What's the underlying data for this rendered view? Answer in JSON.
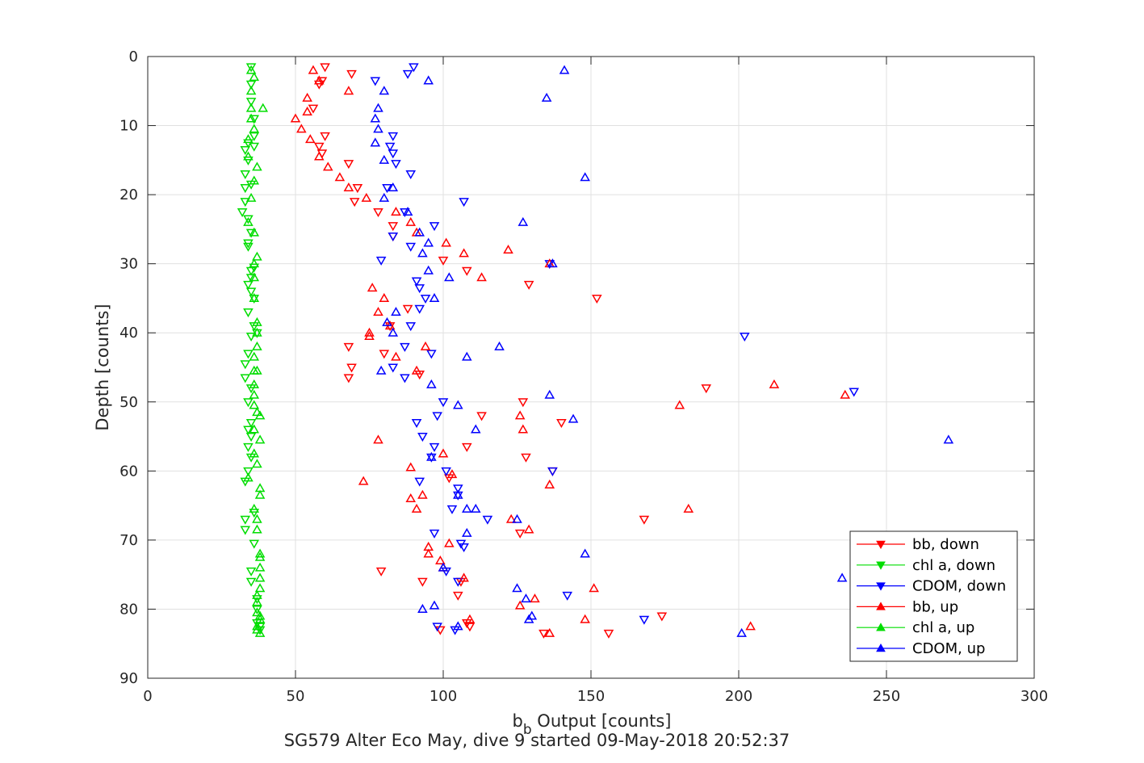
{
  "chart_data": {
    "type": "scatter",
    "title": "",
    "subtitle": "SG579 Alter Eco May, dive 9 started 09-May-2018 20:52:37",
    "xlabel_main": "b",
    "xlabel_sub": "b",
    "xlabel_rest": " Output [counts]",
    "ylabel": "Depth [counts]",
    "xlim": [
      0,
      300
    ],
    "ylim": [
      0,
      90
    ],
    "y_reversed": true,
    "xticks": [
      0,
      50,
      100,
      150,
      200,
      250,
      300
    ],
    "yticks": [
      0,
      10,
      20,
      30,
      40,
      50,
      60,
      70,
      80,
      90
    ],
    "grid": true,
    "legend_position": "bottom-right",
    "series": [
      {
        "name": "bb, down",
        "color": "#ff0000",
        "marker": "triangle-down",
        "points": [
          [
            60,
            1.5
          ],
          [
            69,
            2.5
          ],
          [
            59,
            3.5
          ],
          [
            58,
            4
          ],
          [
            56,
            7.5
          ],
          [
            60,
            11.5
          ],
          [
            58,
            13
          ],
          [
            59,
            14
          ],
          [
            68,
            15.5
          ],
          [
            71,
            19
          ],
          [
            70,
            21
          ],
          [
            78,
            22.5
          ],
          [
            83,
            24.5
          ],
          [
            83,
            26
          ],
          [
            100,
            29.5
          ],
          [
            108,
            31
          ],
          [
            88,
            36.5
          ],
          [
            82,
            39
          ],
          [
            68,
            42
          ],
          [
            69,
            45
          ],
          [
            68,
            46.5
          ],
          [
            80,
            43
          ],
          [
            92,
            46
          ],
          [
            127,
            50
          ],
          [
            113,
            52
          ],
          [
            140,
            53
          ],
          [
            108,
            56.5
          ],
          [
            128,
            58
          ],
          [
            137,
            60
          ],
          [
            102,
            61
          ],
          [
            129,
            33
          ],
          [
            152,
            35
          ],
          [
            189,
            48
          ],
          [
            168,
            67
          ],
          [
            126,
            69
          ],
          [
            105,
            78
          ],
          [
            99,
            83
          ],
          [
            108,
            82
          ],
          [
            109,
            82.5
          ],
          [
            156,
            83.5
          ],
          [
            134,
            83.5
          ],
          [
            174,
            81
          ],
          [
            79,
            74.5
          ],
          [
            93,
            76
          ],
          [
            106,
            76
          ]
        ]
      },
      {
        "name": "chl a, down",
        "color": "#00dd00",
        "marker": "triangle-down",
        "points": [
          [
            35,
            1.5
          ],
          [
            35,
            4
          ],
          [
            35,
            6.5
          ],
          [
            36,
            9
          ],
          [
            36,
            11.5
          ],
          [
            34,
            12.5
          ],
          [
            33,
            13.5
          ],
          [
            34,
            15
          ],
          [
            33,
            17
          ],
          [
            35,
            18.5
          ],
          [
            33,
            19
          ],
          [
            33,
            21
          ],
          [
            32,
            22.5
          ],
          [
            34,
            23.5
          ],
          [
            35,
            25.5
          ],
          [
            34,
            27
          ],
          [
            34,
            27.5
          ],
          [
            36,
            30.5
          ],
          [
            35,
            32
          ],
          [
            34,
            33
          ],
          [
            35,
            34
          ],
          [
            36,
            35
          ],
          [
            34,
            37
          ],
          [
            36,
            39
          ],
          [
            35,
            40.5
          ],
          [
            34,
            43
          ],
          [
            33,
            44.5
          ],
          [
            33,
            46.5
          ],
          [
            35,
            48
          ],
          [
            34,
            50
          ],
          [
            35,
            53
          ],
          [
            34,
            54
          ],
          [
            35,
            55
          ],
          [
            34,
            56.5
          ],
          [
            35,
            58
          ],
          [
            34,
            60
          ],
          [
            33,
            61.5
          ],
          [
            36,
            66
          ],
          [
            33,
            67
          ],
          [
            33,
            68.5
          ],
          [
            36,
            70.5
          ],
          [
            35,
            74.5
          ],
          [
            35,
            76
          ],
          [
            37,
            78.5
          ],
          [
            37,
            80
          ],
          [
            37,
            82
          ],
          [
            38,
            83
          ],
          [
            36,
            13
          ],
          [
            35,
            31
          ],
          [
            37,
            40
          ],
          [
            38,
            82.5
          ]
        ]
      },
      {
        "name": "CDOM, down",
        "color": "#0000ff",
        "marker": "triangle-down",
        "points": [
          [
            90,
            1.5
          ],
          [
            88,
            2.5
          ],
          [
            77,
            3.5
          ],
          [
            83,
            11.5
          ],
          [
            82,
            13
          ],
          [
            83,
            14
          ],
          [
            84,
            15.5
          ],
          [
            89,
            17
          ],
          [
            81,
            19
          ],
          [
            87,
            22.5
          ],
          [
            83,
            26
          ],
          [
            89,
            27.5
          ],
          [
            97,
            24.5
          ],
          [
            79,
            29.5
          ],
          [
            91,
            32.5
          ],
          [
            92,
            33.5
          ],
          [
            94,
            35
          ],
          [
            92,
            36.5
          ],
          [
            89,
            39
          ],
          [
            87,
            42
          ],
          [
            96,
            43
          ],
          [
            83,
            45
          ],
          [
            87,
            46.5
          ],
          [
            100,
            50
          ],
          [
            91,
            53
          ],
          [
            98,
            52
          ],
          [
            93,
            55
          ],
          [
            97,
            56.5
          ],
          [
            96,
            58
          ],
          [
            101,
            60
          ],
          [
            92,
            61.5
          ],
          [
            105,
            62.5
          ],
          [
            105,
            63.5
          ],
          [
            103,
            65.5
          ],
          [
            97,
            69
          ],
          [
            106,
            70.5
          ],
          [
            107,
            71
          ],
          [
            101,
            74.5
          ],
          [
            105,
            76
          ],
          [
            98,
            82.5
          ],
          [
            104,
            83
          ],
          [
            137,
            60
          ],
          [
            142,
            78
          ],
          [
            168,
            81.5
          ],
          [
            202,
            40.5
          ],
          [
            239,
            48.5
          ],
          [
            136,
            30
          ],
          [
            107,
            21
          ],
          [
            115,
            67
          ]
        ]
      },
      {
        "name": "bb, up",
        "color": "#ff0000",
        "marker": "triangle-up",
        "points": [
          [
            56,
            2
          ],
          [
            58,
            3.5
          ],
          [
            68,
            5
          ],
          [
            54,
            6
          ],
          [
            54,
            8
          ],
          [
            50,
            9
          ],
          [
            52,
            10.5
          ],
          [
            55,
            12
          ],
          [
            58,
            14.5
          ],
          [
            61,
            16
          ],
          [
            65,
            17.5
          ],
          [
            68,
            19
          ],
          [
            74,
            20.5
          ],
          [
            84,
            22.5
          ],
          [
            89,
            24
          ],
          [
            91,
            25.5
          ],
          [
            101,
            27
          ],
          [
            107,
            28.5
          ],
          [
            113,
            32
          ],
          [
            122,
            28
          ],
          [
            136,
            30
          ],
          [
            76,
            33.5
          ],
          [
            80,
            35
          ],
          [
            78,
            37
          ],
          [
            82,
            39
          ],
          [
            75,
            40
          ],
          [
            75,
            40.5
          ],
          [
            84,
            43.5
          ],
          [
            91,
            45.5
          ],
          [
            94,
            42
          ],
          [
            126,
            52
          ],
          [
            127,
            54
          ],
          [
            78,
            55.5
          ],
          [
            100,
            57.5
          ],
          [
            89,
            59.5
          ],
          [
            73,
            61.5
          ],
          [
            103,
            60.5
          ],
          [
            89,
            64
          ],
          [
            93,
            63.5
          ],
          [
            91,
            65.5
          ],
          [
            136,
            62
          ],
          [
            123,
            67
          ],
          [
            129,
            68.5
          ],
          [
            95,
            71
          ],
          [
            102,
            70.5
          ],
          [
            95,
            72
          ],
          [
            99,
            73
          ],
          [
            100,
            74
          ],
          [
            107,
            75.5
          ],
          [
            126,
            79.5
          ],
          [
            131,
            78.5
          ],
          [
            151,
            77
          ],
          [
            148,
            81.5
          ],
          [
            109,
            81.5
          ],
          [
            212,
            47.5
          ],
          [
            236,
            49
          ],
          [
            180,
            50.5
          ],
          [
            183,
            65.5
          ],
          [
            204,
            82.5
          ],
          [
            136,
            83.5
          ]
        ]
      },
      {
        "name": "chl a, up",
        "color": "#00dd00",
        "marker": "triangle-up",
        "points": [
          [
            35,
            2
          ],
          [
            36,
            3
          ],
          [
            35,
            5
          ],
          [
            35,
            7.5
          ],
          [
            39,
            7.5
          ],
          [
            35,
            9
          ],
          [
            36,
            10.5
          ],
          [
            34,
            12
          ],
          [
            34,
            14.5
          ],
          [
            37,
            16
          ],
          [
            36,
            18
          ],
          [
            35,
            20.5
          ],
          [
            34,
            24
          ],
          [
            36,
            25.5
          ],
          [
            37,
            29
          ],
          [
            36,
            30
          ],
          [
            36,
            32
          ],
          [
            36,
            35
          ],
          [
            37,
            38.5
          ],
          [
            37,
            40
          ],
          [
            37,
            42
          ],
          [
            36,
            43.5
          ],
          [
            37,
            45.5
          ],
          [
            36,
            47.5
          ],
          [
            36,
            49
          ],
          [
            36,
            50.5
          ],
          [
            37,
            51.5
          ],
          [
            38,
            52
          ],
          [
            36,
            54
          ],
          [
            38,
            55.5
          ],
          [
            36,
            57.5
          ],
          [
            37,
            59
          ],
          [
            34,
            61
          ],
          [
            38,
            62.5
          ],
          [
            38,
            63.5
          ],
          [
            36,
            65.5
          ],
          [
            37,
            67
          ],
          [
            37,
            68.5
          ],
          [
            38,
            72
          ],
          [
            38,
            72.5
          ],
          [
            38,
            74
          ],
          [
            38,
            75.5
          ],
          [
            38,
            77
          ],
          [
            37,
            78
          ],
          [
            37,
            79
          ],
          [
            37,
            80.5
          ],
          [
            38,
            81
          ],
          [
            37,
            82.5
          ],
          [
            37,
            83
          ],
          [
            38,
            83.5
          ],
          [
            38,
            81.5
          ],
          [
            36,
            45.5
          ]
        ]
      },
      {
        "name": "CDOM, up",
        "color": "#0000ff",
        "marker": "triangle-up",
        "points": [
          [
            141,
            2
          ],
          [
            95,
            3.5
          ],
          [
            80,
            5
          ],
          [
            135,
            6
          ],
          [
            78,
            7.5
          ],
          [
            77,
            9
          ],
          [
            78,
            10.5
          ],
          [
            77,
            12.5
          ],
          [
            80,
            15
          ],
          [
            148,
            17.5
          ],
          [
            83,
            19
          ],
          [
            80,
            20.5
          ],
          [
            88,
            22.5
          ],
          [
            127,
            24
          ],
          [
            92,
            25.5
          ],
          [
            95,
            27
          ],
          [
            93,
            28.5
          ],
          [
            137,
            30
          ],
          [
            95,
            31
          ],
          [
            102,
            32
          ],
          [
            97,
            35
          ],
          [
            84,
            37
          ],
          [
            81,
            38.5
          ],
          [
            83,
            40
          ],
          [
            119,
            42
          ],
          [
            108,
            43.5
          ],
          [
            79,
            45.5
          ],
          [
            96,
            47.5
          ],
          [
            136,
            49
          ],
          [
            105,
            50.5
          ],
          [
            144,
            52.5
          ],
          [
            111,
            54
          ],
          [
            96,
            58
          ],
          [
            105,
            63.5
          ],
          [
            111,
            65.5
          ],
          [
            108,
            65.5
          ],
          [
            125,
            67
          ],
          [
            108,
            69
          ],
          [
            148,
            72
          ],
          [
            100,
            74
          ],
          [
            125,
            77
          ],
          [
            128,
            78.5
          ],
          [
            97,
            79.5
          ],
          [
            93,
            80
          ],
          [
            130,
            81
          ],
          [
            129,
            81.5
          ],
          [
            105,
            82.5
          ],
          [
            201,
            83.5
          ],
          [
            235,
            75.5
          ],
          [
            271,
            55.5
          ]
        ]
      }
    ]
  }
}
